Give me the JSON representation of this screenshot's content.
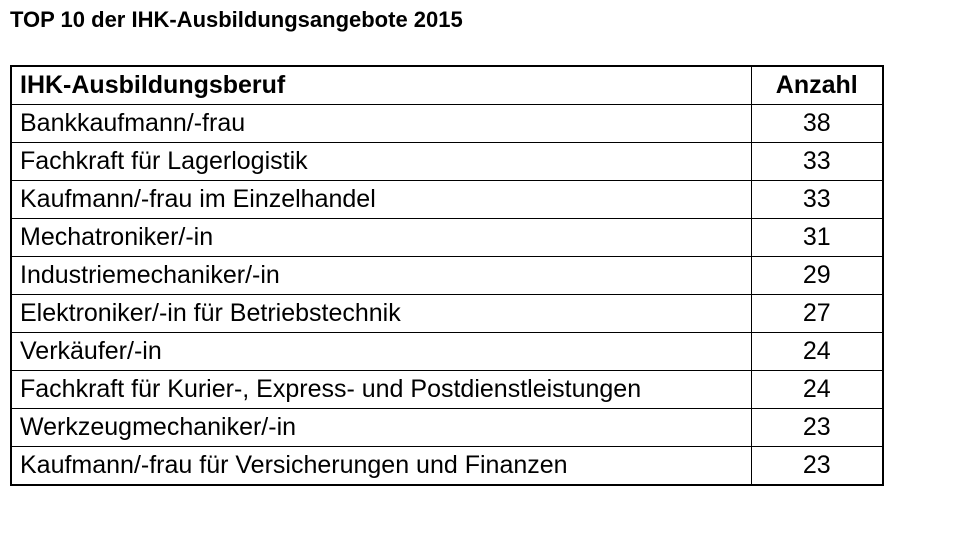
{
  "page": {
    "title": "TOP 10 der IHK-Ausbildungsangebote 2015"
  },
  "table": {
    "headers": {
      "beruf": "IHK-Ausbildungsberuf",
      "anzahl": "Anzahl"
    },
    "rows": [
      {
        "beruf": "Bankkaufmann/-frau",
        "anzahl": "38"
      },
      {
        "beruf": "Fachkraft für Lagerlogistik",
        "anzahl": "33"
      },
      {
        "beruf": "Kaufmann/-frau im Einzelhandel",
        "anzahl": "33"
      },
      {
        "beruf": "Mechatroniker/-in",
        "anzahl": "31"
      },
      {
        "beruf": "Industriemechaniker/-in",
        "anzahl": "29"
      },
      {
        "beruf": "Elektroniker/-in für Betriebstechnik",
        "anzahl": "27"
      },
      {
        "beruf": "Verkäufer/-in",
        "anzahl": "24"
      },
      {
        "beruf": "Fachkraft für Kurier-, Express- und Postdienstleistungen",
        "anzahl": "24"
      },
      {
        "beruf": "Werkzeugmechaniker/-in",
        "anzahl": "23"
      },
      {
        "beruf": "Kaufmann/-frau für Versicherungen und Finanzen",
        "anzahl": "23"
      }
    ]
  },
  "colors": {
    "text": "#000000",
    "border": "#000000",
    "background": "#ffffff"
  },
  "chart_data": {
    "type": "table",
    "title": "TOP 10 der IHK-Ausbildungsangebote 2015",
    "columns": [
      "IHK-Ausbildungsberuf",
      "Anzahl"
    ],
    "categories": [
      "Bankkaufmann/-frau",
      "Fachkraft für Lagerlogistik",
      "Kaufmann/-frau im Einzelhandel",
      "Mechatroniker/-in",
      "Industriemechaniker/-in",
      "Elektroniker/-in für Betriebstechnik",
      "Verkäufer/-in",
      "Fachkraft für Kurier-, Express- und Postdienstleistungen",
      "Werkzeugmechaniker/-in",
      "Kaufmann/-frau für Versicherungen und Finanzen"
    ],
    "values": [
      38,
      33,
      33,
      31,
      29,
      27,
      24,
      24,
      23,
      23
    ]
  }
}
